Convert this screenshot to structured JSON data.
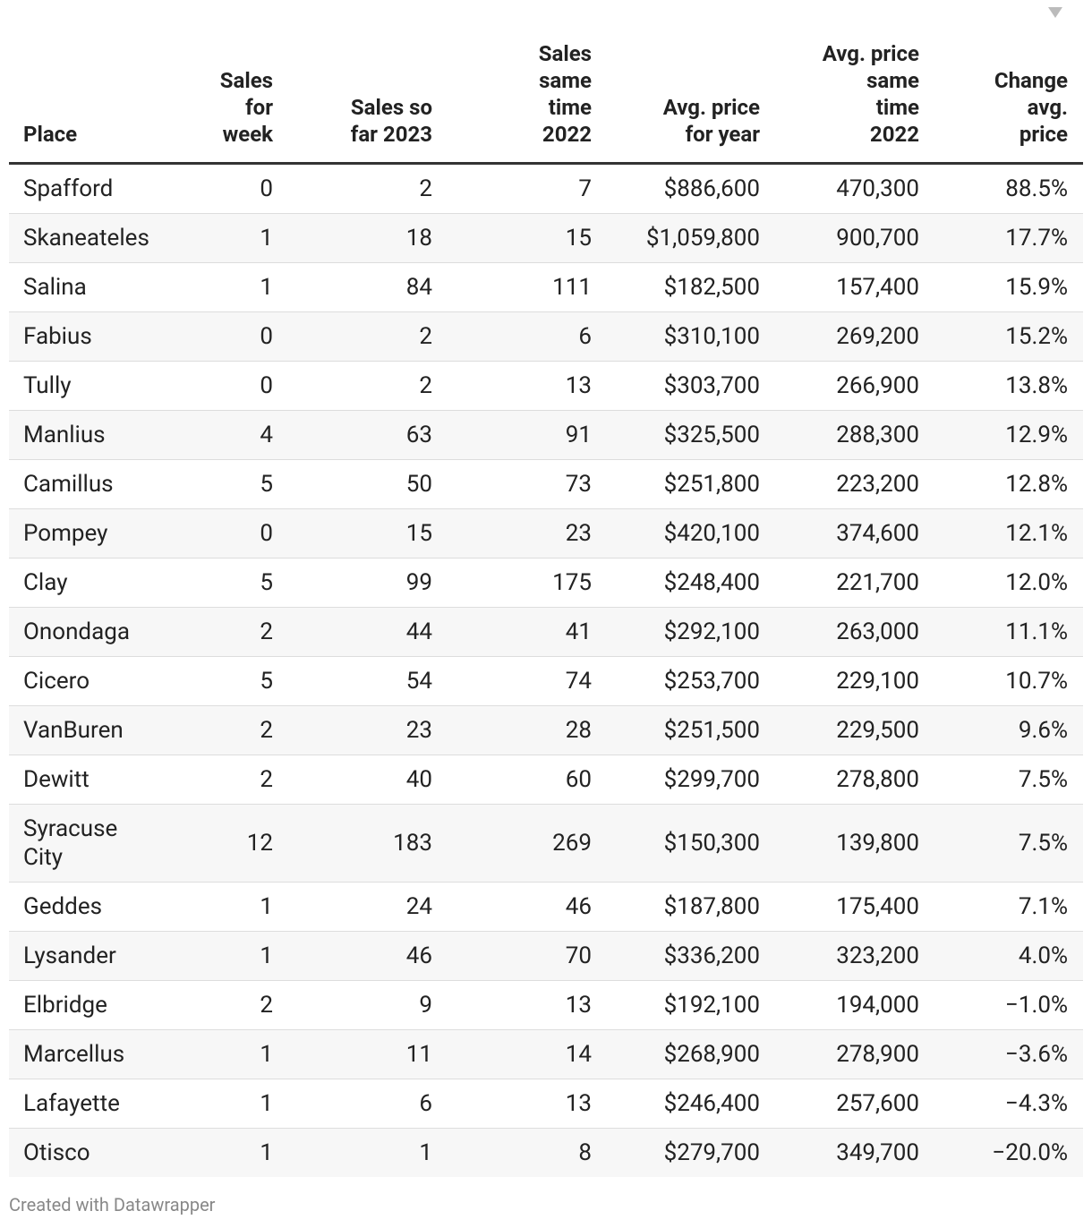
{
  "table": {
    "header": [
      [
        "Place"
      ],
      [
        "Sales",
        "for",
        "week"
      ],
      [
        "Sales so",
        "far 2023"
      ],
      [
        "Sales",
        "same",
        "time",
        "2022"
      ],
      [
        "Avg. price",
        "for year"
      ],
      [
        "Avg. price",
        "same",
        "time",
        "2022"
      ],
      [
        "Change",
        "avg.",
        "price"
      ]
    ],
    "rows": [
      [
        "Spafford",
        "0",
        "2",
        "7",
        "$886,600",
        "470,300",
        "88.5%"
      ],
      [
        "Skaneateles",
        "1",
        "18",
        "15",
        "$1,059,800",
        "900,700",
        "17.7%"
      ],
      [
        "Salina",
        "1",
        "84",
        "111",
        "$182,500",
        "157,400",
        "15.9%"
      ],
      [
        "Fabius",
        "0",
        "2",
        "6",
        "$310,100",
        "269,200",
        "15.2%"
      ],
      [
        "Tully",
        "0",
        "2",
        "13",
        "$303,700",
        "266,900",
        "13.8%"
      ],
      [
        "Manlius",
        "4",
        "63",
        "91",
        "$325,500",
        "288,300",
        "12.9%"
      ],
      [
        "Camillus",
        "5",
        "50",
        "73",
        "$251,800",
        "223,200",
        "12.8%"
      ],
      [
        "Pompey",
        "0",
        "15",
        "23",
        "$420,100",
        "374,600",
        "12.1%"
      ],
      [
        "Clay",
        "5",
        "99",
        "175",
        "$248,400",
        "221,700",
        "12.0%"
      ],
      [
        "Onondaga",
        "2",
        "44",
        "41",
        "$292,100",
        "263,000",
        "11.1%"
      ],
      [
        "Cicero",
        "5",
        "54",
        "74",
        "$253,700",
        "229,100",
        "10.7%"
      ],
      [
        "VanBuren",
        "2",
        "23",
        "28",
        "$251,500",
        "229,500",
        "9.6%"
      ],
      [
        "Dewitt",
        "2",
        "40",
        "60",
        "$299,700",
        "278,800",
        "7.5%"
      ],
      [
        "Syracuse City",
        "12",
        "183",
        "269",
        "$150,300",
        "139,800",
        "7.5%"
      ],
      [
        "Geddes",
        "1",
        "24",
        "46",
        "$187,800",
        "175,400",
        "7.1%"
      ],
      [
        "Lysander",
        "1",
        "46",
        "70",
        "$336,200",
        "323,200",
        "4.0%"
      ],
      [
        "Elbridge",
        "2",
        "9",
        "13",
        "$192,100",
        "194,000",
        "−1.0%"
      ],
      [
        "Marcellus",
        "1",
        "11",
        "14",
        "$268,900",
        "278,900",
        "−3.6%"
      ],
      [
        "Lafayette",
        "1",
        "6",
        "13",
        "$246,400",
        "257,600",
        "−4.3%"
      ],
      [
        "Otisco",
        "1",
        "1",
        "8",
        "$279,700",
        "349,700",
        "−20.0%"
      ]
    ]
  },
  "footer": "Created with Datawrapper"
}
